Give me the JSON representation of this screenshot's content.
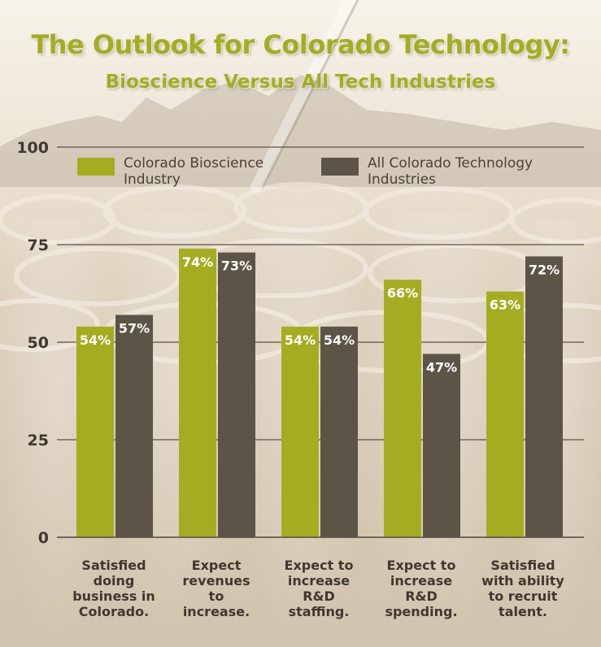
{
  "colors": {
    "bioscience": "#a4ad22",
    "all_tech": "#5c5447",
    "title": "#a4ad22",
    "gridline": "#5a5245",
    "value_label": "#ffffff"
  },
  "chart_data": {
    "type": "bar",
    "title": "The Outlook for Colorado Technology:",
    "subtitle": "Bioscience Versus All Tech Industries",
    "xlabel": "",
    "ylabel": "",
    "ylim": [
      0,
      100
    ],
    "yticks": [
      "0",
      "25",
      "50",
      "75",
      "100"
    ],
    "grid": true,
    "legend_position": "top",
    "categories": [
      [
        "Satisfied",
        "doing",
        "business in",
        "Colorado."
      ],
      [
        "Expect",
        "revenues",
        "to",
        "increase."
      ],
      [
        "Expect to",
        "increase",
        "R&D",
        "staffing."
      ],
      [
        "Expect to",
        "increase",
        "R&D",
        "spending."
      ],
      [
        "Satisfied",
        "with ability",
        "to recruit",
        "talent."
      ]
    ],
    "series": [
      {
        "name": "Colorado Bioscience Industry",
        "legend_lines": [
          "Colorado Bioscience",
          "Industry"
        ],
        "color": "#a4ad22",
        "values": [
          54,
          74,
          54,
          66,
          63
        ],
        "labels": [
          "54%",
          "74%",
          "54%",
          "66%",
          "63%"
        ]
      },
      {
        "name": "All Colorado Technology Industries",
        "legend_lines": [
          "All Colorado Technology",
          "Industries"
        ],
        "color": "#5c5447",
        "values": [
          57,
          73,
          54,
          47,
          72
        ],
        "labels": [
          "57%",
          "73%",
          "54%",
          "47%",
          "72%"
        ]
      }
    ]
  }
}
